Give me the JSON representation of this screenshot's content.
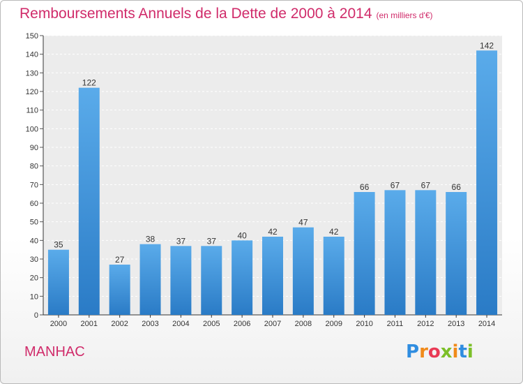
{
  "chart_data": {
    "type": "bar",
    "title": "Remboursements Annuels de la Dette de 2000 à 2014",
    "unit_note": "(en milliers d'€)",
    "categories": [
      "2000",
      "2001",
      "2002",
      "2003",
      "2004",
      "2005",
      "2006",
      "2007",
      "2008",
      "2009",
      "2010",
      "2011",
      "2012",
      "2013",
      "2014"
    ],
    "values": [
      35,
      122,
      27,
      38,
      37,
      37,
      40,
      42,
      47,
      42,
      66,
      67,
      67,
      66,
      142
    ],
    "ylim": [
      0,
      150
    ],
    "yticks": [
      0,
      10,
      20,
      30,
      40,
      50,
      60,
      70,
      80,
      90,
      100,
      110,
      120,
      130,
      140,
      150
    ],
    "grid": true,
    "bar_color": "#3d8fd6"
  },
  "footer": {
    "place": "MANHAC",
    "logo_letters": [
      "P",
      "r",
      "o",
      "x",
      "i",
      "t",
      "i"
    ],
    "logo_colors": [
      "#2f8de0",
      "#f08a1a",
      "#e93a55",
      "#7cbf28",
      "#f08a1a",
      "#2f8de0",
      "#7cbf28"
    ]
  }
}
